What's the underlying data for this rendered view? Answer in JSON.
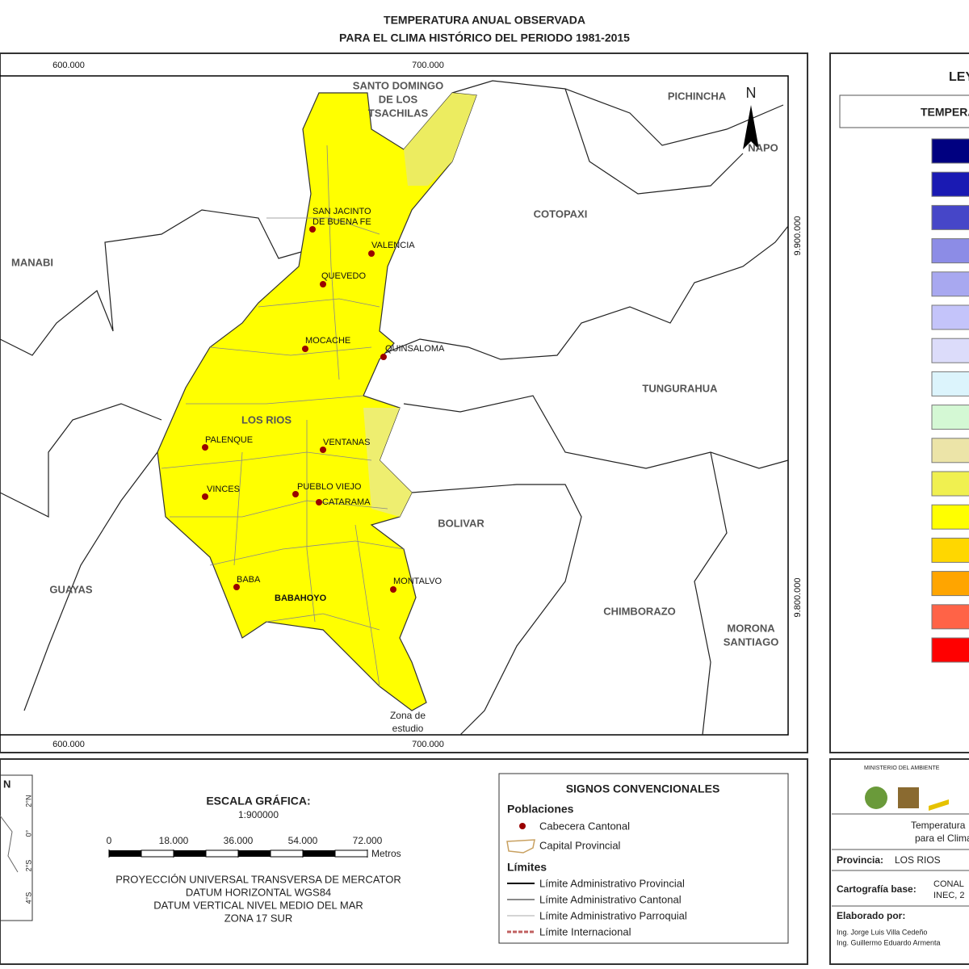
{
  "title": [
    "TEMPERATURA ANUAL OBSERVADA",
    "PARA EL CLIMA HISTÓRICO DEL PERIODO 1981-2015"
  ],
  "map": {
    "grid_labels": {
      "top": [
        "600.000",
        "700.000"
      ],
      "bottom": [
        "600.000",
        "700.000"
      ],
      "right": [
        "9.900.000",
        "9.800.000"
      ]
    },
    "provinces": [
      [
        "SANTO DOMINGO",
        "DE LOS",
        "TSACHILAS"
      ],
      [
        "PICHINCHA"
      ],
      [
        "NAPO"
      ],
      [
        "COTOPAXI"
      ],
      [
        "MANABI"
      ],
      [
        "TUNGURAHUA"
      ],
      [
        "LOS RIOS"
      ],
      [
        "BOLIVAR"
      ],
      [
        "GUAYAS"
      ],
      [
        "CHIMBORAZO"
      ],
      [
        "MORONA",
        "SANTIAGO"
      ]
    ],
    "towns": [
      [
        "SAN JACINTO",
        "DE BUENA FE"
      ],
      [
        "VALENCIA"
      ],
      [
        "QUEVEDO"
      ],
      [
        "MOCACHE"
      ],
      [
        "QUINSALOMA"
      ],
      [
        "PALENQUE"
      ],
      [
        "VENTANAS"
      ],
      [
        "VINCES"
      ],
      [
        "PUEBLO VIEJO"
      ],
      [
        "CATARAMA"
      ],
      [
        "BABA"
      ],
      [
        "BABAHOYO"
      ],
      [
        "MONTALVO"
      ]
    ],
    "study_zone": [
      "Zona de",
      "estudio"
    ],
    "north": "N"
  },
  "legend": {
    "title": "LEYENDA",
    "subtitle": "TEMPERATURA",
    "colors": [
      "#000080",
      "#1a1ab3",
      "#4646c8",
      "#8c8ce6",
      "#a8a8f0",
      "#c4c4fa",
      "#dcdcfa",
      "#dcf4fc",
      "#d4f8d4",
      "#ece4a8",
      "#f0f050",
      "#ffff00",
      "#ffd700",
      "#ffa500",
      "#ff6347",
      "#ff0000"
    ]
  },
  "inset": {
    "north": "N",
    "labels": [
      "2°N",
      "0°",
      "2°S",
      "4°S"
    ]
  },
  "scale": {
    "title": "ESCALA GRÁFICA:",
    "ratio": "1:900000",
    "ticks": [
      0,
      {
        "value": 18000,
        "label": "18.000"
      },
      {
        "value": 36000,
        "label": "36.000"
      },
      {
        "value": 54000,
        "label": "54.000"
      },
      {
        "value": 72000,
        "label": "72.000"
      }
    ],
    "unit": "Metros"
  },
  "projection": [
    "PROYECCIÓN UNIVERSAL TRANSVERSA DE MERCATOR",
    "DATUM HORIZONTAL WGS84",
    "DATUM VERTICAL NIVEL MEDIO DEL MAR",
    "ZONA 17 SUR"
  ],
  "symbols": {
    "title": "SIGNOS CONVENCIONALES",
    "populations": "Poblaciones",
    "cantonal": "Cabecera Cantonal",
    "provincial": "Capital Provincial",
    "limits": "Límites",
    "limit_items": [
      "Límite Administrativo Provincial",
      "Límite Administrativo Cantonal",
      "Límite Administrativo Parroquial",
      "Límite Internacional"
    ]
  },
  "info": {
    "ministry": "MINISTERIO DEL AMBIENTE",
    "map_title": [
      "Temperatura",
      "para el Clima Históri"
    ],
    "province_label": "Provincia:",
    "province": "LOS RIOS",
    "base_label": "Cartografía base:",
    "base": [
      "CONAL",
      "INEC, 2"
    ],
    "authors_label": "Elaborado por:",
    "authors": [
      "Ing. Jorge Luis Villa Cedeño",
      "Ing. Guillermo Eduardo Armenta"
    ]
  }
}
